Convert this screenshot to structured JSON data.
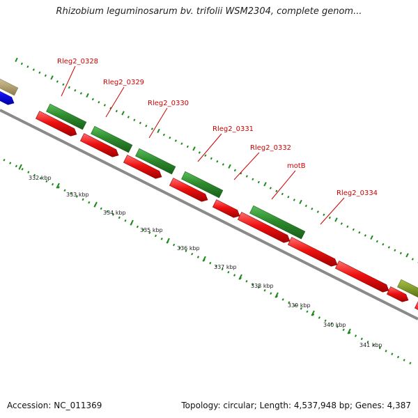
{
  "title": "Rhizobium leguminosarum bv. trifolii WSM2304, complete genom...",
  "footer": {
    "accession": "Accession: NC_011369",
    "topology": "Topology: circular; Length: 4,537,948 bp; Genes: 4,387"
  },
  "colors": {
    "backbone": "#8a8a8a",
    "tick": "#1a8a1a",
    "gene_forward": "#2e8b2e",
    "gene_reverse": "#ee1111",
    "gene_olive": "#7f9a2a",
    "gene_blue": "#1010ee",
    "gene_tan": "#b8a878",
    "label": "#cc0000",
    "kbp_label": "#222222"
  },
  "kbp_labels": [
    "332 kbp",
    "333 kbp",
    "334 kbp",
    "335 kbp",
    "336 kbp",
    "337 kbp",
    "338 kbp",
    "339 kbp",
    "340 kbp",
    "341 kbp"
  ],
  "gene_labels": [
    "Rleg2_0328",
    "Rleg2_0329",
    "Rleg2_0330",
    "Rleg2_0331",
    "Rleg2_0332",
    "motB",
    "Rleg2_0334"
  ]
}
